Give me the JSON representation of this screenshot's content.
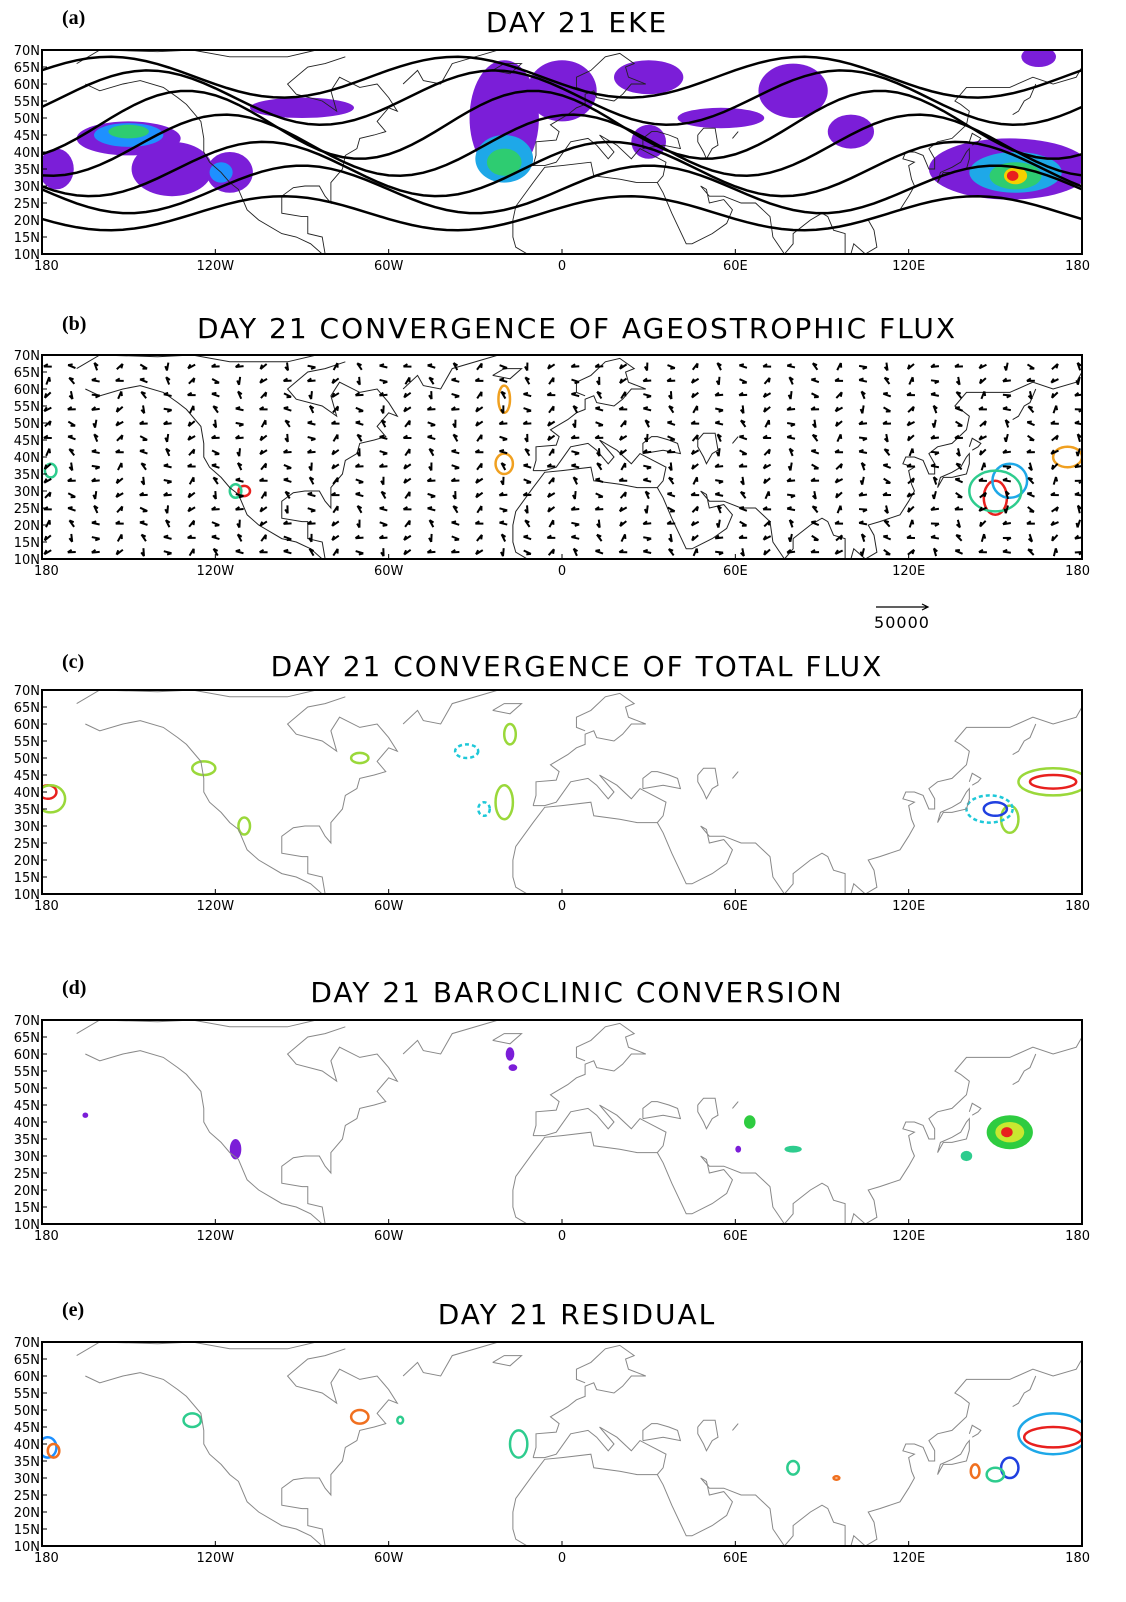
{
  "axes": {
    "xlim": [
      -180,
      180
    ],
    "ylim": [
      10,
      70
    ],
    "xticks": [
      {
        "value": -180,
        "label": "180"
      },
      {
        "value": -120,
        "label": "120W"
      },
      {
        "value": -60,
        "label": "60W"
      },
      0,
      {
        "value": 60,
        "label": "60E"
      },
      {
        "value": 120,
        "label": "120E"
      },
      180
    ],
    "yticks": [
      {
        "value": 10,
        "label": "10N"
      },
      {
        "value": 15,
        "label": "15N"
      },
      {
        "value": 20,
        "label": "20N"
      },
      {
        "value": 25,
        "label": "25N"
      },
      {
        "value": 30,
        "label": "30N"
      },
      {
        "value": 35,
        "label": "35N"
      },
      {
        "value": 40,
        "label": "40N"
      },
      {
        "value": 45,
        "label": "45N"
      },
      {
        "value": 50,
        "label": "50N"
      },
      {
        "value": 55,
        "label": "55N"
      },
      {
        "value": 60,
        "label": "60N"
      },
      {
        "value": 65,
        "label": "65N"
      },
      {
        "value": 70,
        "label": "70N"
      }
    ]
  },
  "panels": [
    {
      "label": "(a)",
      "title": "DAY 21 EKE"
    },
    {
      "label": "(b)",
      "title": "DAY 21 CONVERGENCE OF AGEOSTROPHIC FLUX"
    },
    {
      "label": "(c)",
      "title": "DAY 21 CONVERGENCE OF TOTAL FLUX"
    },
    {
      "label": "(d)",
      "title": "DAY 21 BAROCLINIC CONVERSION"
    },
    {
      "label": "(e)",
      "title": "DAY 21 RESIDUAL"
    }
  ],
  "vector_reference": 50000
}
